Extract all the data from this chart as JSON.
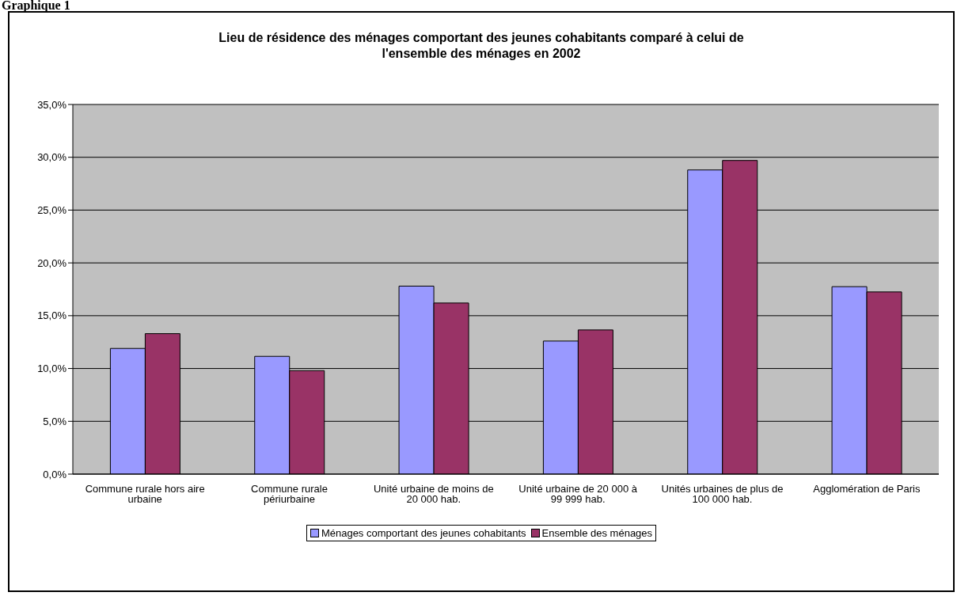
{
  "chart_data": {
    "type": "bar",
    "title": "Lieu de résidence des ménages comportant des jeunes cohabitants comparé à celui de l'ensemble des ménages en 2002",
    "annotations": [
      "Graphique 1"
    ],
    "categories": [
      "Commune rurale hors aire urbaine",
      "Commune rurale périurbaine",
      "Unité urbaine de moins de 20 000 hab.",
      "Unité urbaine de 20 000 à 99 999 hab.",
      "Unités urbaines de plus de 100 000 hab.",
      "Agglomération de Paris"
    ],
    "series": [
      {
        "name": "Ménages comportant des jeunes cohabitants",
        "color": "#9999ff",
        "values": [
          11.9,
          11.15,
          17.8,
          12.6,
          28.8,
          17.75
        ]
      },
      {
        "name": "Ensemble des ménages",
        "color": "#993366",
        "values": [
          13.3,
          9.8,
          16.2,
          13.65,
          29.7,
          17.25
        ]
      }
    ],
    "ylim": [
      0,
      35
    ],
    "yticks": [
      {
        "value": 0,
        "label": "0,0%"
      },
      {
        "value": 5,
        "label": "5,0%"
      },
      {
        "value": 10,
        "label": "10,0%"
      },
      {
        "value": 15,
        "label": "15,0%"
      },
      {
        "value": 20,
        "label": "20,0%"
      },
      {
        "value": 25,
        "label": "25,0%"
      },
      {
        "value": 30,
        "label": "30,0%"
      },
      {
        "value": 35,
        "label": "35,0%"
      }
    ],
    "grid": "y",
    "legend": "bottom"
  }
}
